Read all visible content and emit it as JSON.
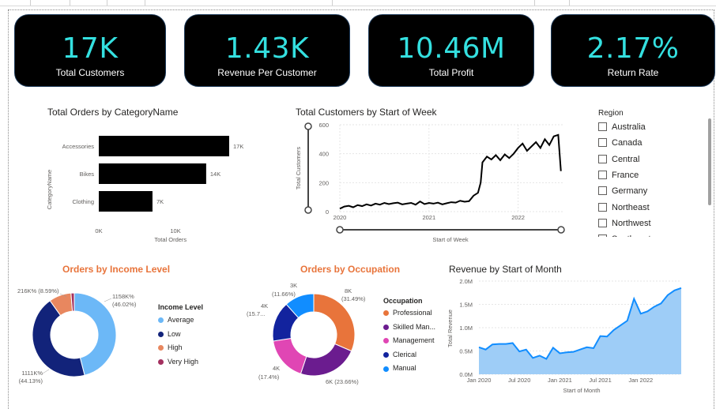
{
  "kpis": [
    {
      "value": "17K",
      "label": "Total Customers"
    },
    {
      "value": "1.43K",
      "label": "Revenue Per Customer"
    },
    {
      "value": "10.46M",
      "label": "Total Profit"
    },
    {
      "value": "2.17%",
      "label": "Return Rate"
    }
  ],
  "orders_by_category": {
    "title": "Total Orders by CategoryName",
    "ylabel": "CategoryName",
    "xlabel": "Total Orders",
    "x_ticks": [
      "0K",
      "10K"
    ],
    "categories": [
      "Accessories",
      "Bikes",
      "Clothing"
    ],
    "value_labels": [
      "17K",
      "14K",
      "7K"
    ]
  },
  "customers_by_week": {
    "title": "Total Customers by Start of Week",
    "ylabel": "Total Customers",
    "xlabel": "Start of Week",
    "y_ticks": [
      "600",
      "400",
      "200",
      "0"
    ],
    "x_ticks": [
      "2020",
      "2021",
      "2022"
    ]
  },
  "region_slicer": {
    "title": "Region",
    "items": [
      "Australia",
      "Canada",
      "Central",
      "France",
      "Germany",
      "Northeast",
      "Northwest",
      "Southeast"
    ]
  },
  "income_chart": {
    "title": "Orders by Income Level",
    "legend_title": "Income Level",
    "legend": [
      {
        "label": "Average",
        "color": "#6cb8f7"
      },
      {
        "label": "Low",
        "color": "#12237a"
      },
      {
        "label": "High",
        "color": "#e8875f"
      },
      {
        "label": "Very High",
        "color": "#a3305f"
      }
    ],
    "labels": [
      {
        "text": "1158K%",
        "sub": "(46.02%)"
      },
      {
        "text": "1111K%",
        "sub": "(44.13%)"
      },
      {
        "text": "216K% (8.59%)",
        "sub": ""
      }
    ]
  },
  "occupation_chart": {
    "title": "Orders by Occupation",
    "legend_title": "Occupation",
    "legend": [
      {
        "label": "Professional",
        "color": "#e8743b"
      },
      {
        "label": "Skilled Man...",
        "color": "#6b1c8f"
      },
      {
        "label": "Management",
        "color": "#e046b4"
      },
      {
        "label": "Clerical",
        "color": "#12239e"
      },
      {
        "label": "Manual",
        "color": "#118dff"
      }
    ],
    "labels": [
      {
        "text": "8K",
        "sub": "(31.49%)"
      },
      {
        "text": "6K (23.66%)",
        "sub": ""
      },
      {
        "text": "4K",
        "sub": "(17.4%)"
      },
      {
        "text": "4K",
        "sub": "(15.7..."
      },
      {
        "text": "3K",
        "sub": "(11.66%)"
      }
    ]
  },
  "revenue_by_month": {
    "title": "Revenue by Start of Month",
    "ylabel": "Total Revenue",
    "xlabel": "Start of Month",
    "y_ticks": [
      "2.0M",
      "1.5M",
      "1.0M",
      "0.5M",
      "0.0M"
    ],
    "x_ticks": [
      "Jan 2020",
      "Jul 2020",
      "Jan 2021",
      "Jul 2021",
      "Jan 2022"
    ]
  },
  "chart_data": [
    {
      "type": "bar",
      "title": "Total Orders by CategoryName",
      "categories": [
        "Accessories",
        "Bikes",
        "Clothing"
      ],
      "values": [
        17000,
        14000,
        7000
      ],
      "xlabel": "Total Orders",
      "ylabel": "CategoryName",
      "xlim": [
        0,
        17000
      ]
    },
    {
      "type": "line",
      "title": "Total Customers by Start of Week",
      "xlabel": "Start of Week",
      "ylabel": "Total Customers",
      "ylim": [
        0,
        600
      ],
      "xlim": [
        2020.0,
        2022.5
      ],
      "x": [
        2020.0,
        2020.05,
        2020.1,
        2020.15,
        2020.2,
        2020.25,
        2020.3,
        2020.35,
        2020.4,
        2020.45,
        2020.5,
        2020.55,
        2020.6,
        2020.65,
        2020.7,
        2020.75,
        2020.8,
        2020.85,
        2020.9,
        2020.95,
        2021.0,
        2021.05,
        2021.1,
        2021.15,
        2021.2,
        2021.25,
        2021.3,
        2021.35,
        2021.4,
        2021.45,
        2021.5,
        2021.55,
        2021.58,
        2021.6,
        2021.65,
        2021.7,
        2021.75,
        2021.8,
        2021.85,
        2021.9,
        2021.95,
        2022.0,
        2022.05,
        2022.1,
        2022.15,
        2022.2,
        2022.25,
        2022.3,
        2022.35,
        2022.4,
        2022.45,
        2022.48
      ],
      "values": [
        20,
        35,
        40,
        30,
        45,
        38,
        50,
        42,
        55,
        48,
        60,
        52,
        58,
        62,
        50,
        55,
        60,
        48,
        70,
        52,
        60,
        55,
        62,
        50,
        58,
        65,
        62,
        75,
        68,
        72,
        110,
        130,
        200,
        340,
        380,
        360,
        390,
        355,
        395,
        370,
        400,
        440,
        470,
        420,
        450,
        480,
        440,
        500,
        460,
        520,
        530,
        280
      ]
    },
    {
      "type": "pie",
      "title": "Orders by Income Level",
      "categories": [
        "Average",
        "Low",
        "High",
        "Very High"
      ],
      "values": [
        46.02,
        44.13,
        8.59,
        1.26
      ]
    },
    {
      "type": "pie",
      "title": "Orders by Occupation",
      "categories": [
        "Professional",
        "Skilled Manual",
        "Management",
        "Clerical",
        "Manual"
      ],
      "values": [
        31.49,
        23.66,
        17.4,
        15.79,
        11.66
      ]
    },
    {
      "type": "area",
      "title": "Revenue by Start of Month",
      "xlabel": "Start of Month",
      "ylabel": "Total Revenue",
      "ylim": [
        0,
        2000000
      ],
      "x": [
        "2020-01",
        "2020-02",
        "2020-03",
        "2020-04",
        "2020-05",
        "2020-06",
        "2020-07",
        "2020-08",
        "2020-09",
        "2020-10",
        "2020-11",
        "2020-12",
        "2021-01",
        "2021-02",
        "2021-03",
        "2021-04",
        "2021-05",
        "2021-06",
        "2021-07",
        "2021-08",
        "2021-09",
        "2021-10",
        "2021-11",
        "2021-12",
        "2022-01",
        "2022-02",
        "2022-03",
        "2022-04",
        "2022-05",
        "2022-06",
        "2022-07"
      ],
      "values": [
        580000,
        530000,
        640000,
        650000,
        650000,
        670000,
        490000,
        530000,
        350000,
        400000,
        330000,
        570000,
        450000,
        470000,
        480000,
        530000,
        580000,
        560000,
        820000,
        810000,
        950000,
        1050000,
        1150000,
        1620000,
        1300000,
        1350000,
        1450000,
        1520000,
        1700000,
        1800000,
        1850000
      ]
    }
  ]
}
